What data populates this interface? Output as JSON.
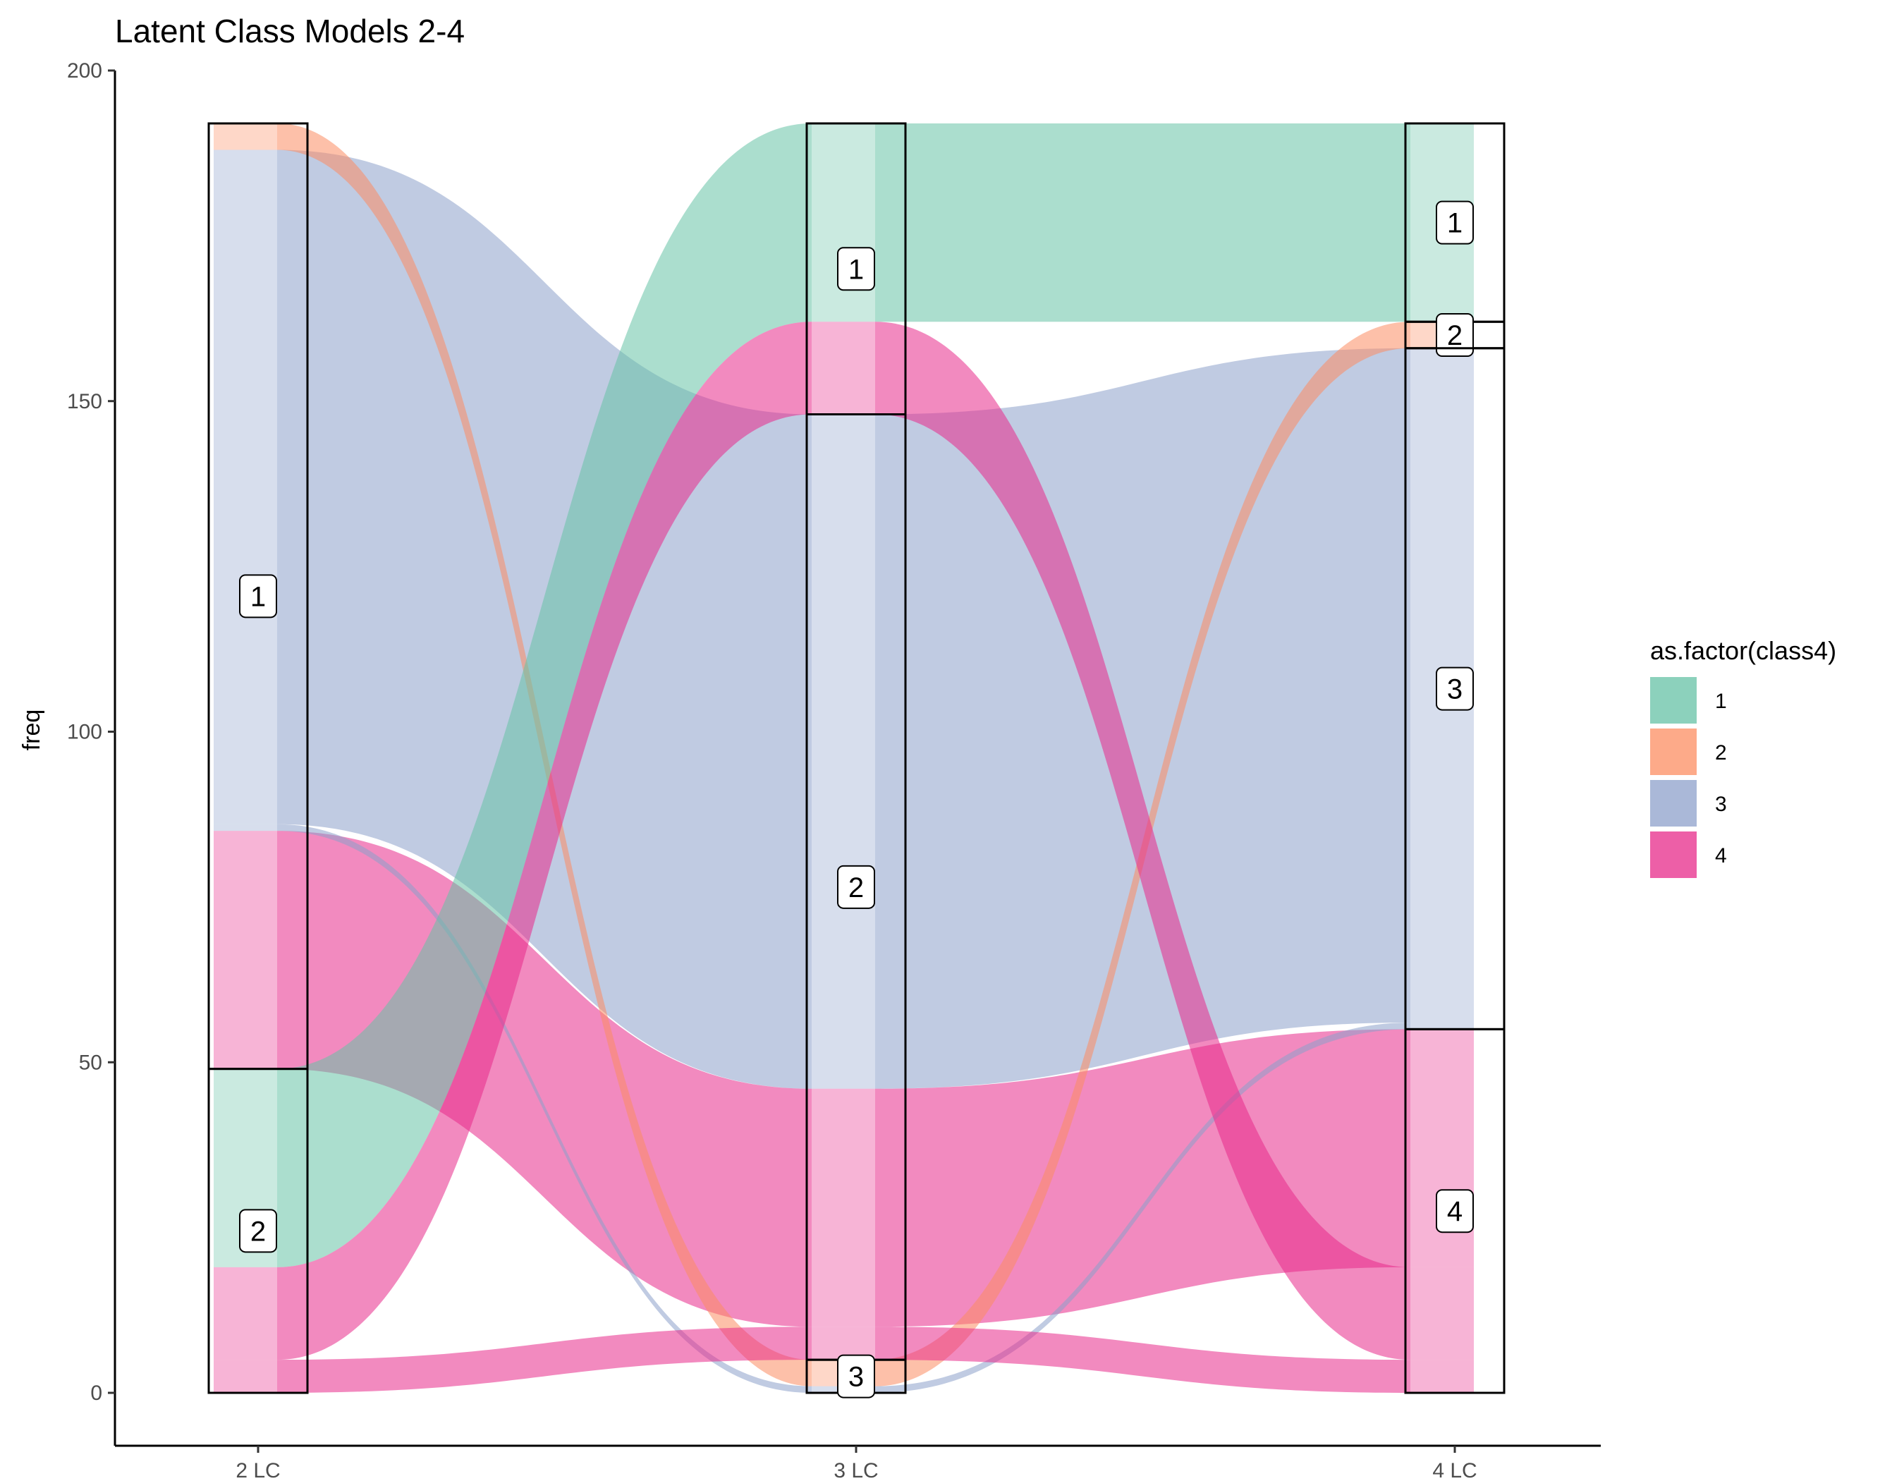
{
  "chart_data": {
    "type": "alluvial",
    "title": "Latent Class Models 2-4",
    "xlabel": "",
    "ylabel": "freq",
    "ylim": [
      -8,
      200
    ],
    "yticks": [
      0,
      50,
      100,
      150,
      200
    ],
    "axes": [
      "2 LC",
      "3 LC",
      "4 LC"
    ],
    "legend": {
      "title": "as.factor(class4)",
      "position": "right",
      "items": [
        {
          "label": "1",
          "color": "#66c2a5"
        },
        {
          "label": "2",
          "color": "#fc8d62"
        },
        {
          "label": "3",
          "color": "#8da0cb"
        },
        {
          "label": "4",
          "color": "#e7298a"
        }
      ]
    },
    "strata": [
      {
        "axis": "2 LC",
        "label": "1",
        "bottom": 49,
        "top": 192
      },
      {
        "axis": "2 LC",
        "label": "2",
        "bottom": 0,
        "top": 49
      },
      {
        "axis": "3 LC",
        "label": "1",
        "bottom": 148,
        "top": 192
      },
      {
        "axis": "3 LC",
        "label": "2",
        "bottom": 5,
        "top": 148
      },
      {
        "axis": "3 LC",
        "label": "3",
        "bottom": 0,
        "top": 5
      },
      {
        "axis": "4 LC",
        "label": "1",
        "bottom": 162,
        "top": 192
      },
      {
        "axis": "4 LC",
        "label": "2",
        "bottom": 158,
        "top": 162
      },
      {
        "axis": "4 LC",
        "label": "3",
        "bottom": 55,
        "top": 158
      },
      {
        "axis": "4 LC",
        "label": "4",
        "bottom": 0,
        "top": 55
      }
    ],
    "flows": [
      {
        "class4": "3",
        "path": [
          "1",
          "2",
          "3"
        ],
        "freq": 102
      },
      {
        "class4": "4",
        "path": [
          "1",
          "2",
          "4"
        ],
        "freq": 36
      },
      {
        "class4": "2",
        "path": [
          "1",
          "3",
          "2"
        ],
        "freq": 4
      },
      {
        "class4": "3",
        "path": [
          "1",
          "3",
          "3"
        ],
        "freq": 1
      },
      {
        "class4": "1",
        "path": [
          "2",
          "1",
          "1"
        ],
        "freq": 30
      },
      {
        "class4": "4",
        "path": [
          "2",
          "1",
          "4"
        ],
        "freq": 14
      },
      {
        "class4": "4",
        "path": [
          "2",
          "2",
          "4"
        ],
        "freq": 5
      }
    ]
  }
}
